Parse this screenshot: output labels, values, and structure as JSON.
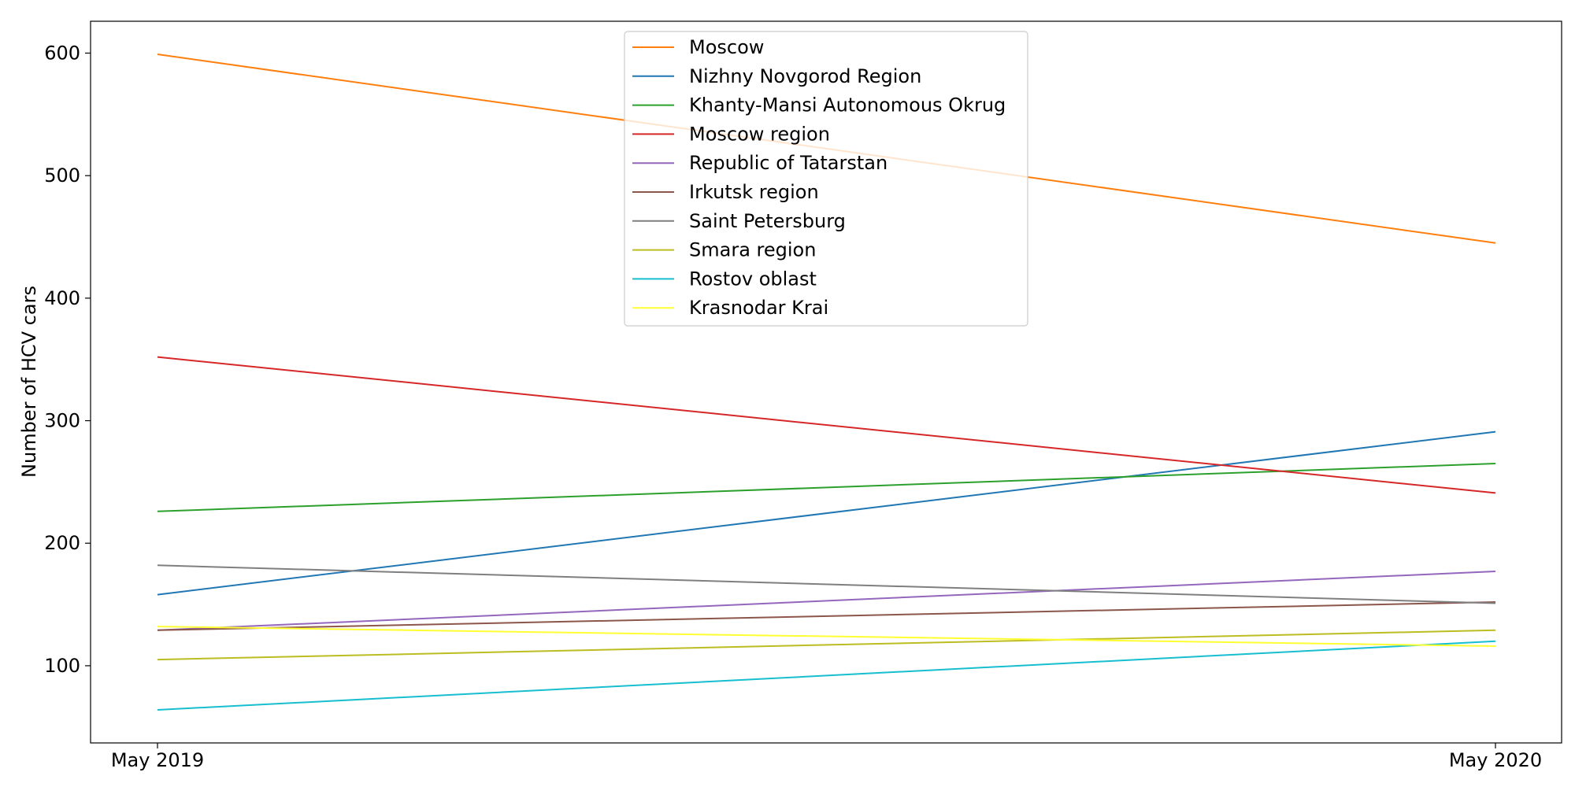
{
  "chart_data": {
    "type": "line",
    "title": "",
    "xlabel": "",
    "ylabel": "Number of HCV cars",
    "categories": [
      "May 2019",
      "May 2020"
    ],
    "ylim": [
      37,
      626
    ],
    "yticks": [
      100,
      200,
      300,
      400,
      500,
      600
    ],
    "grid": false,
    "legend_position": "upper center",
    "series": [
      {
        "name": "Moscow",
        "color": "#ff7f0e",
        "values": [
          599,
          445
        ]
      },
      {
        "name": "Nizhny Novgorod Region",
        "color": "#1f77b4",
        "values": [
          158,
          291
        ]
      },
      {
        "name": "Khanty-Mansi Autonomous Okrug",
        "color": "#2ca02c",
        "values": [
          226,
          265
        ]
      },
      {
        "name": "Moscow region",
        "color": "#d62728",
        "values": [
          352,
          241
        ]
      },
      {
        "name": "Republic of Tatarstan",
        "color": "#9467bd",
        "values": [
          129,
          177
        ]
      },
      {
        "name": "Irkutsk region",
        "color": "#8c564b",
        "values": [
          129,
          152
        ]
      },
      {
        "name": "Saint Petersburg",
        "color": "#7f7f7f",
        "values": [
          182,
          151
        ]
      },
      {
        "name": "Smara region",
        "color": "#bcbd22",
        "values": [
          105,
          129
        ]
      },
      {
        "name": "Rostov oblast",
        "color": "#17becf",
        "values": [
          64,
          120
        ]
      },
      {
        "name": "Krasnodar Krai",
        "color": "#ffff33",
        "values": [
          132,
          116
        ]
      }
    ]
  }
}
